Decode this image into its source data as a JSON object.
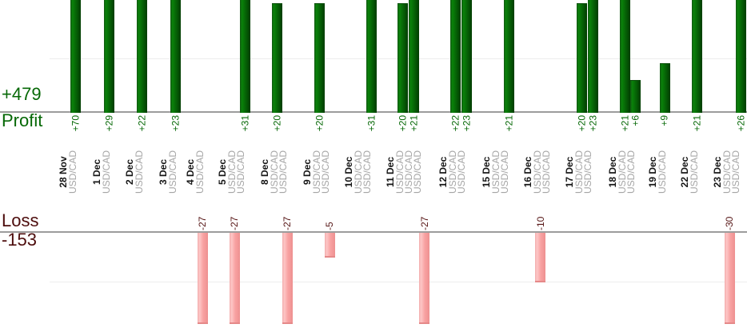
{
  "profit_section": {
    "total_label": "+479",
    "axis_title": "Profit"
  },
  "loss_section": {
    "total_label": "-153",
    "axis_title": "Loss"
  },
  "colors": {
    "profit_text": "#066806",
    "loss_text": "#4d0d0d",
    "loss_value_text": "#551414",
    "profit_bar": "#066306",
    "loss_bar": "#f8a2a2",
    "date_label": "#161616",
    "symbol_label": "#a5a5a5",
    "baseline": "#9c9c9c",
    "gridline": "#ededed"
  },
  "chart_data": {
    "type": "bar",
    "title": "",
    "description": "Daily trade results split into a Profit chart (green bars above shared baseline) and a Loss chart (pink bars below second baseline); each column is one USD/CAD trade grouped by date",
    "profit_total": 479,
    "loss_total": -153,
    "profit_axis": {
      "baseline_value": 0,
      "gridline_value": 10,
      "bars_clipped_above": 20
    },
    "loss_axis": {
      "baseline_value": 0,
      "gridline_value": -10,
      "bars_clipped_below": -18
    },
    "legend_position": "none",
    "groups": [
      {
        "date": "28 Nov",
        "trades": [
          {
            "symbol": "USD/CAD",
            "value": 70,
            "label": "+70"
          }
        ]
      },
      {
        "date": "1 Dec",
        "trades": [
          {
            "symbol": "USD/CAD",
            "value": 29,
            "label": "+29"
          }
        ]
      },
      {
        "date": "2 Dec",
        "trades": [
          {
            "symbol": "USD/CAD",
            "value": 22,
            "label": "+22"
          }
        ]
      },
      {
        "date": "3 Dec",
        "trades": [
          {
            "symbol": "USD/CAD",
            "value": 23,
            "label": "+23"
          }
        ]
      },
      {
        "date": "4 Dec",
        "trades": [
          {
            "symbol": "USD/CAD",
            "value": -27,
            "label": "-27"
          }
        ]
      },
      {
        "date": "5 Dec",
        "trades": [
          {
            "symbol": "USD/CAD",
            "value": -27,
            "label": "-27"
          },
          {
            "symbol": "USD/CAD",
            "value": 31,
            "label": "+31"
          }
        ]
      },
      {
        "date": "8 Dec",
        "trades": [
          {
            "symbol": "USD/CAD",
            "value": 20,
            "label": "+20"
          },
          {
            "symbol": "USD/CAD",
            "value": -27,
            "label": "-27"
          }
        ]
      },
      {
        "date": "9 Dec",
        "trades": [
          {
            "symbol": "USD/CAD",
            "value": 20,
            "label": "+20"
          },
          {
            "symbol": "USD/CAD",
            "value": -5,
            "label": "-5"
          }
        ]
      },
      {
        "date": "10 Dec",
        "trades": [
          {
            "symbol": "USD/CAD",
            "value": 0,
            "label": ""
          },
          {
            "symbol": "USD/CAD",
            "value": 31,
            "label": "+31"
          }
        ]
      },
      {
        "date": "11 Dec",
        "trades": [
          {
            "symbol": "USD/CAD",
            "value": 20,
            "label": "+20"
          },
          {
            "symbol": "USD/CAD",
            "value": 21,
            "label": "+21"
          },
          {
            "symbol": "USD/CAD",
            "value": -27,
            "label": "-27"
          }
        ]
      },
      {
        "date": "12 Dec",
        "trades": [
          {
            "symbol": "USD/CAD",
            "value": 22,
            "label": "+22"
          },
          {
            "symbol": "USD/CAD",
            "value": 23,
            "label": "+23"
          }
        ]
      },
      {
        "date": "15 Dec",
        "trades": [
          {
            "symbol": "USD/CAD",
            "value": 0,
            "label": ""
          },
          {
            "symbol": "USD/CAD",
            "value": 21,
            "label": "+21"
          }
        ]
      },
      {
        "date": "16 Dec",
        "trades": [
          {
            "symbol": "USD/CAD",
            "value": -10,
            "label": "-10"
          },
          {
            "symbol": "USD/CAD",
            "value": 0,
            "label": ""
          }
        ]
      },
      {
        "date": "17 Dec",
        "trades": [
          {
            "symbol": "USD/CAD",
            "value": 20,
            "label": "+20"
          },
          {
            "symbol": "USD/CAD",
            "value": 23,
            "label": "+23"
          }
        ]
      },
      {
        "date": "18 Dec",
        "trades": [
          {
            "symbol": "USD/CAD",
            "value": 21,
            "label": "+21"
          },
          {
            "symbol": "USD/CAD",
            "value": 6,
            "label": "+6"
          }
        ]
      },
      {
        "date": "19 Dec",
        "trades": [
          {
            "symbol": "USD/CAD",
            "value": 9,
            "label": "+9"
          }
        ]
      },
      {
        "date": "22 Dec",
        "trades": [
          {
            "symbol": "USD/CAD",
            "value": 21,
            "label": "+21"
          }
        ]
      },
      {
        "date": "23 Dec",
        "trades": [
          {
            "symbol": "USD/CAD",
            "value": -30,
            "label": "-30"
          },
          {
            "symbol": "USD/CAD",
            "value": 26,
            "label": "+26"
          }
        ]
      }
    ]
  }
}
